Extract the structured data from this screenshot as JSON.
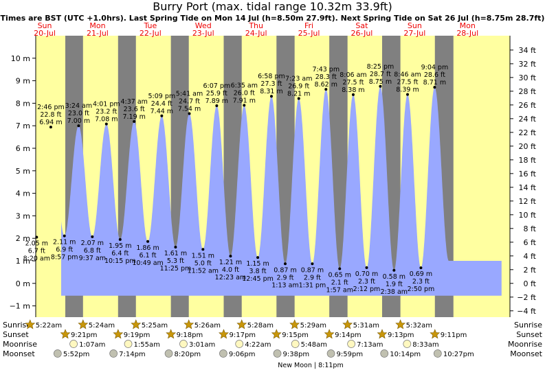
{
  "chart_data": {
    "type": "area",
    "title": "Burry Port (max. tidal range 10.32m 33.9ft)",
    "subtitle": "Times are BST (UTC +1.0hrs). Last Spring Tide on Mon 14 Jul (h=8.50m 27.9ft). Next Spring Tide on Sat 26 Jul (h=8.75m 28.7ft)",
    "ylim": [
      -1.5,
      11.0
    ],
    "left_ticks": [
      {
        "v": -1,
        "label": "−1 m"
      },
      {
        "v": 0,
        "label": "0 m"
      },
      {
        "v": 1,
        "label": "1 m"
      },
      {
        "v": 2,
        "label": "2 m"
      },
      {
        "v": 3,
        "label": "3 m"
      },
      {
        "v": 4,
        "label": "4 m"
      },
      {
        "v": 5,
        "label": "5 m"
      },
      {
        "v": 6,
        "label": "6 m"
      },
      {
        "v": 7,
        "label": "7 m"
      },
      {
        "v": 8,
        "label": "8 m"
      },
      {
        "v": 9,
        "label": "9 m"
      },
      {
        "v": 10,
        "label": "10 m"
      }
    ],
    "right_ticks": [
      {
        "v": -4,
        "label": "−4 ft"
      },
      {
        "v": -2,
        "label": "−2 ft"
      },
      {
        "v": 0,
        "label": "0 ft"
      },
      {
        "v": 2,
        "label": "2 ft"
      },
      {
        "v": 4,
        "label": "4 ft"
      },
      {
        "v": 6,
        "label": "6 ft"
      },
      {
        "v": 8,
        "label": "8 ft"
      },
      {
        "v": 10,
        "label": "10 ft"
      },
      {
        "v": 12,
        "label": "12 ft"
      },
      {
        "v": 14,
        "label": "14 ft"
      },
      {
        "v": 16,
        "label": "16 ft"
      },
      {
        "v": 18,
        "label": "18 ft"
      },
      {
        "v": 20,
        "label": "20 ft"
      },
      {
        "v": 22,
        "label": "22 ft"
      },
      {
        "v": 24,
        "label": "24 ft"
      },
      {
        "v": 26,
        "label": "26 ft"
      },
      {
        "v": 28,
        "label": "28 ft"
      },
      {
        "v": 30,
        "label": "30 ft"
      },
      {
        "v": 32,
        "label": "32 ft"
      },
      {
        "v": 34,
        "label": "34 ft"
      }
    ],
    "x_start": "2025-07-20T00:00",
    "days": [
      {
        "dow": "Sun",
        "date": "20-Jul",
        "sunrise": "5:22am",
        "sunset": "9:21pm",
        "moonrise": "",
        "moonset": "5:52pm"
      },
      {
        "dow": "Mon",
        "date": "21-Jul",
        "sunrise": "5:24am",
        "sunset": "9:19pm",
        "moonrise": "1:07am",
        "moonset": "7:14pm"
      },
      {
        "dow": "Tue",
        "date": "22-Jul",
        "sunrise": "5:25am",
        "sunset": "9:18pm",
        "moonrise": "1:55am",
        "moonset": "8:20pm"
      },
      {
        "dow": "Wed",
        "date": "23-Jul",
        "sunrise": "5:26am",
        "sunset": "9:17pm",
        "moonrise": "3:01am",
        "moonset": "9:06pm"
      },
      {
        "dow": "Thu",
        "date": "24-Jul",
        "sunrise": "5:28am",
        "sunset": "9:15pm",
        "moonrise": "4:22am",
        "moonset": "9:38pm"
      },
      {
        "dow": "Fri",
        "date": "25-Jul",
        "sunrise": "5:29am",
        "sunset": "9:14pm",
        "moonrise": "5:48am",
        "moonset": "9:59pm"
      },
      {
        "dow": "Sat",
        "date": "26-Jul",
        "sunrise": "5:31am",
        "sunset": "9:13pm",
        "moonrise": "7:13am",
        "moonset": "10:14pm"
      },
      {
        "dow": "Sun",
        "date": "27-Jul",
        "sunrise": "5:32am",
        "sunset": "9:11pm",
        "moonrise": "8:33am",
        "moonset": "10:27pm"
      },
      {
        "dow": "Mon",
        "date": "28-Jul",
        "sunrise": "",
        "sunset": "",
        "moonrise": "",
        "moonset": ""
      }
    ],
    "tides": [
      {
        "t": "2025-07-20T08:20",
        "m": 2.05,
        "label_m": "2.05 m",
        "label_ft": "6.7 ft",
        "time": "8:20 am",
        "type": "low"
      },
      {
        "t": "2025-07-20T14:46",
        "m": 6.94,
        "label_m": "6.94 m",
        "label_ft": "22.8 ft",
        "time": "2:46 pm",
        "type": "high"
      },
      {
        "t": "2025-07-20T20:57",
        "m": 2.11,
        "label_m": "2.11 m",
        "label_ft": "6.9 ft",
        "time": "8:57 pm",
        "type": "low"
      },
      {
        "t": "2025-07-21T03:24",
        "m": 7.0,
        "label_m": "7.00 m",
        "label_ft": "23.0 ft",
        "time": "3:24 am",
        "type": "high"
      },
      {
        "t": "2025-07-21T09:37",
        "m": 2.07,
        "label_m": "2.07 m",
        "label_ft": "6.8 ft",
        "time": "9:37 am",
        "type": "low"
      },
      {
        "t": "2025-07-21T16:01",
        "m": 7.08,
        "label_m": "7.08 m",
        "label_ft": "23.2 ft",
        "time": "4:01 pm",
        "type": "high"
      },
      {
        "t": "2025-07-21T22:15",
        "m": 1.95,
        "label_m": "1.95 m",
        "label_ft": "6.4 ft",
        "time": "10:15 pm",
        "type": "low"
      },
      {
        "t": "2025-07-22T04:37",
        "m": 7.19,
        "label_m": "7.19 m",
        "label_ft": "23.6 ft",
        "time": "4:37 am",
        "type": "high"
      },
      {
        "t": "2025-07-22T10:49",
        "m": 1.86,
        "label_m": "1.86 m",
        "label_ft": "6.1 ft",
        "time": "10:49 am",
        "type": "low"
      },
      {
        "t": "2025-07-22T17:09",
        "m": 7.44,
        "label_m": "7.44 m",
        "label_ft": "24.4 ft",
        "time": "5:09 pm",
        "type": "high"
      },
      {
        "t": "2025-07-22T23:25",
        "m": 1.61,
        "label_m": "1.61 m",
        "label_ft": "5.3 ft",
        "time": "11:25 pm",
        "type": "low"
      },
      {
        "t": "2025-07-23T05:41",
        "m": 7.54,
        "label_m": "7.54 m",
        "label_ft": "24.7 ft",
        "time": "5:41 am",
        "type": "high"
      },
      {
        "t": "2025-07-23T11:52",
        "m": 1.51,
        "label_m": "1.51 m",
        "label_ft": "5.0 ft",
        "time": "11:52 am",
        "type": "low"
      },
      {
        "t": "2025-07-23T18:07",
        "m": 7.89,
        "label_m": "7.89 m",
        "label_ft": "25.9 ft",
        "time": "6:07 pm",
        "type": "high"
      },
      {
        "t": "2025-07-24T00:23",
        "m": 1.21,
        "label_m": "1.21 m",
        "label_ft": "4.0 ft",
        "time": "12:23 am",
        "type": "low"
      },
      {
        "t": "2025-07-24T06:35",
        "m": 7.91,
        "label_m": "7.91 m",
        "label_ft": "26.0 ft",
        "time": "6:35 am",
        "type": "high"
      },
      {
        "t": "2025-07-24T12:45",
        "m": 1.15,
        "label_m": "1.15 m",
        "label_ft": "3.8 ft",
        "time": "12:45 pm",
        "type": "low"
      },
      {
        "t": "2025-07-24T18:58",
        "m": 8.31,
        "label_m": "8.31 m",
        "label_ft": "27.3 ft",
        "time": "6:58 pm",
        "type": "high"
      },
      {
        "t": "2025-07-25T01:13",
        "m": 0.87,
        "label_m": "0.87 m",
        "label_ft": "2.9 ft",
        "time": "1:13 am",
        "type": "low"
      },
      {
        "t": "2025-07-25T07:23",
        "m": 8.21,
        "label_m": "8.21 m",
        "label_ft": "26.9 ft",
        "time": "7:23 am",
        "type": "high"
      },
      {
        "t": "2025-07-25T13:31",
        "m": 0.87,
        "label_m": "0.87 m",
        "label_ft": "2.9 ft",
        "time": "1:31 pm",
        "type": "low"
      },
      {
        "t": "2025-07-25T19:43",
        "m": 8.62,
        "label_m": "8.62 m",
        "label_ft": "28.3 ft",
        "time": "7:43 pm",
        "type": "high"
      },
      {
        "t": "2025-07-26T01:57",
        "m": 0.65,
        "label_m": "0.65 m",
        "label_ft": "2.1 ft",
        "time": "1:57 am",
        "type": "low"
      },
      {
        "t": "2025-07-26T08:06",
        "m": 8.38,
        "label_m": "8.38 m",
        "label_ft": "27.5 ft",
        "time": "8:06 am",
        "type": "high"
      },
      {
        "t": "2025-07-26T14:12",
        "m": 0.7,
        "label_m": "0.70 m",
        "label_ft": "2.3 ft",
        "time": "2:12 pm",
        "type": "low"
      },
      {
        "t": "2025-07-26T20:25",
        "m": 8.75,
        "label_m": "8.75 m",
        "label_ft": "28.7 ft",
        "time": "8:25 pm",
        "type": "high"
      },
      {
        "t": "2025-07-27T02:38",
        "m": 0.58,
        "label_m": "0.58 m",
        "label_ft": "1.9 ft",
        "time": "2:38 am",
        "type": "low"
      },
      {
        "t": "2025-07-27T08:46",
        "m": 8.39,
        "label_m": "8.39 m",
        "label_ft": "27.5 ft",
        "time": "8:46 am",
        "type": "high"
      },
      {
        "t": "2025-07-27T14:50",
        "m": 0.69,
        "label_m": "0.69 m",
        "label_ft": "2.3 ft",
        "time": "2:50 pm",
        "type": "low"
      },
      {
        "t": "2025-07-27T21:04",
        "m": 8.71,
        "label_m": "8.71 m",
        "label_ft": "28.6 ft",
        "time": "9:04 pm",
        "type": "high"
      }
    ],
    "row_labels": {
      "sunrise": "Sunrise",
      "sunset": "Sunset",
      "moonrise": "Moonrise",
      "moonset": "Moonset"
    },
    "new_moon_label": "New Moon | 8:11pm",
    "colors": {
      "night": "#808080",
      "day": "#ffffa0",
      "water": "#99a8ff",
      "day_label": "#ee0000",
      "sun_icon": "#c8960a",
      "moon_icon": "#fff8c0",
      "moonset_icon": "#c0c0b0"
    }
  }
}
